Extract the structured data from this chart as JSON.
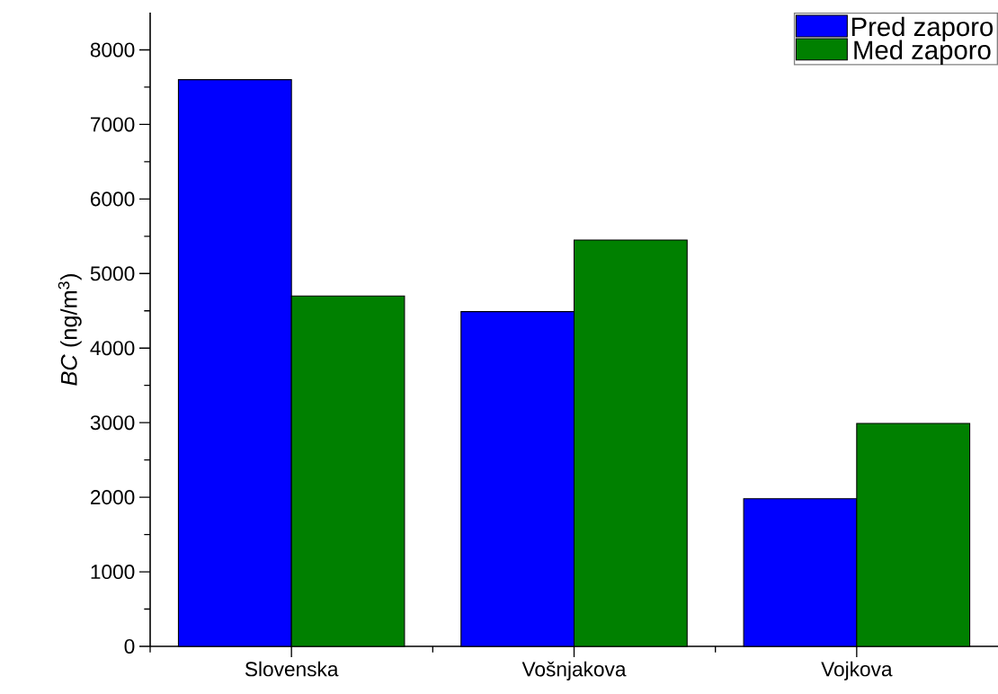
{
  "chart_data": {
    "type": "bar",
    "ylabel": "*BC* (ng/m$^{3}$)",
    "categories": [
      "Slovenska",
      "Vošnjakova",
      "Vojkova"
    ],
    "series": [
      {
        "name": "Pred zaporo",
        "color": "#0000ff",
        "values": [
          7600,
          4490,
          1980
        ]
      },
      {
        "name": "Med zaporo",
        "color": "#008000",
        "values": [
          4700,
          5450,
          2990
        ]
      }
    ],
    "ylim": [
      0,
      8500
    ],
    "yticks": [
      0,
      1000,
      2000,
      3000,
      4000,
      5000,
      6000,
      7000,
      8000
    ],
    "legend": "top right"
  }
}
